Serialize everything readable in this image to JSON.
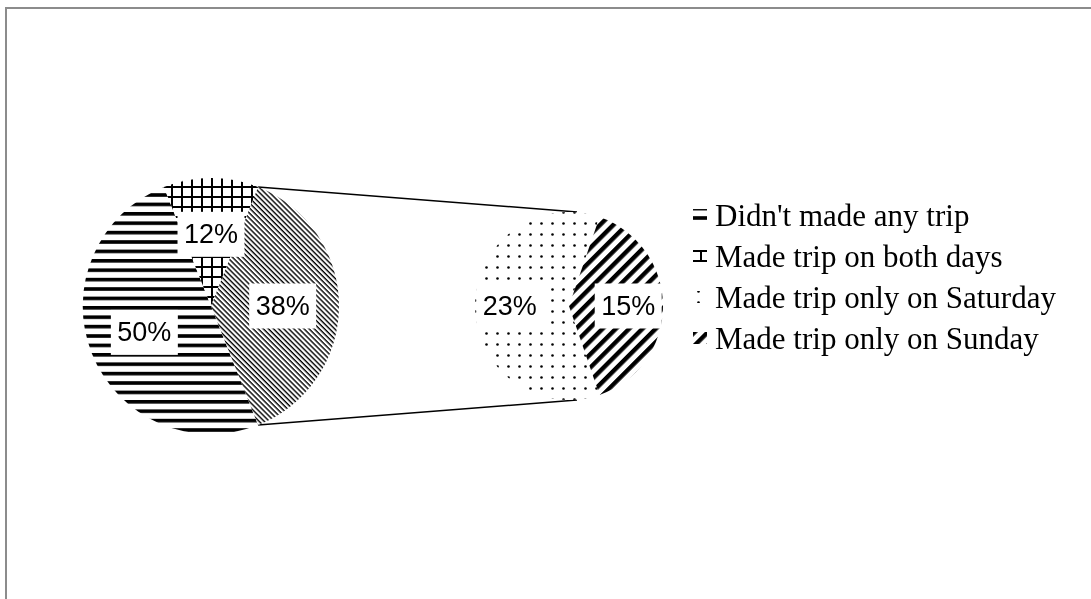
{
  "chart_data": [
    {
      "type": "pie",
      "categories": [
        "Didn't made any trip",
        "Made trip on both days",
        null
      ],
      "values": [
        50,
        12,
        38
      ],
      "value_labels": [
        "50%",
        "12%",
        "38%"
      ],
      "colors": [
        "#000000",
        "#000000",
        "#000000"
      ],
      "legend": "right"
    },
    {
      "type": "pie",
      "categories": [
        "Made trip only on Saturday",
        "Made trip only on Sunday"
      ],
      "values": [
        23,
        15
      ],
      "value_labels": [
        "23%",
        "15%"
      ],
      "colors": [
        "#000000",
        "#000000"
      ],
      "legend": "right"
    }
  ]
}
